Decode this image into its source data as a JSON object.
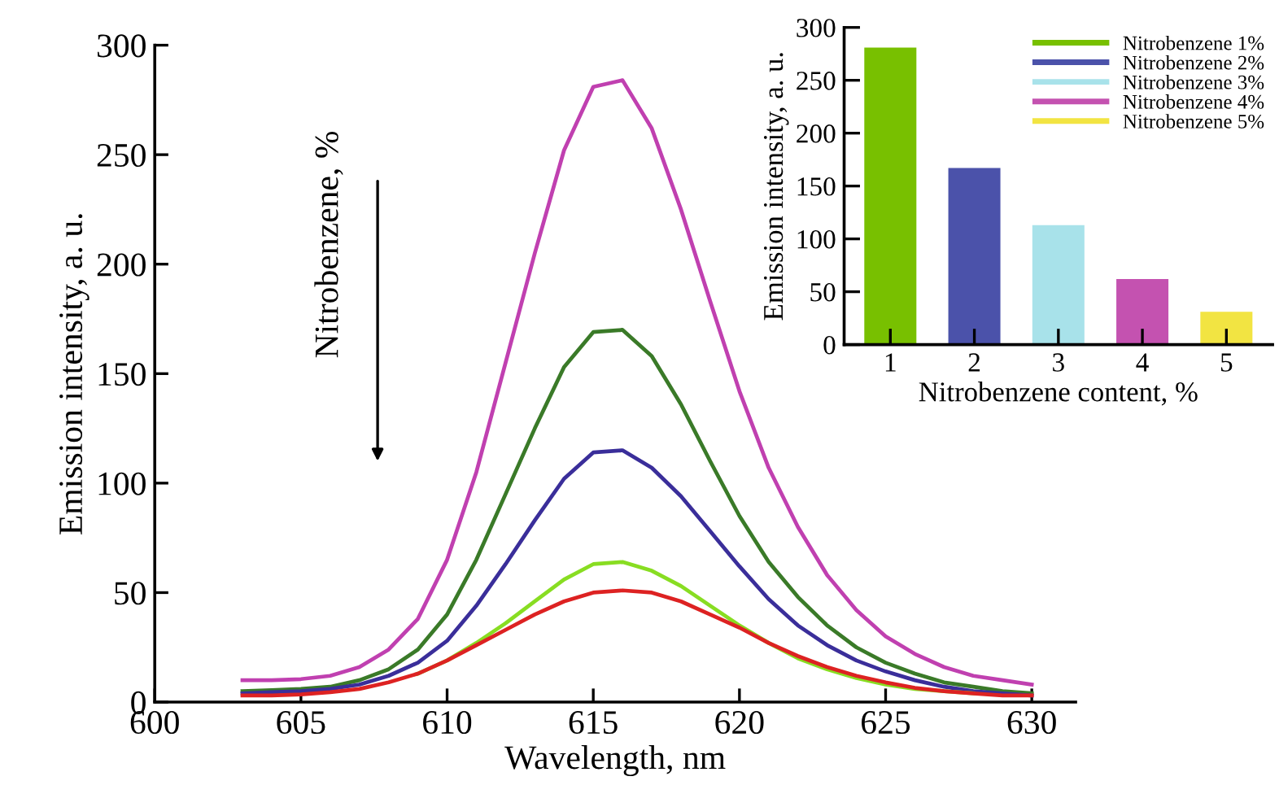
{
  "chart_data": [
    {
      "type": "line",
      "xlabel": "Wavelength, nm",
      "ylabel": "Emission intensity, a. u.",
      "annotations": [
        "Nitrobenzene, %"
      ],
      "x": [
        603,
        604,
        605,
        606,
        607,
        608,
        609,
        610,
        611,
        612,
        613,
        614,
        615,
        616,
        617,
        618,
        619,
        620,
        621,
        622,
        623,
        624,
        625,
        626,
        627,
        628,
        629,
        630
      ],
      "series": [
        {
          "color": "#c040b0",
          "values": [
            10,
            10,
            10.5,
            12,
            16,
            24,
            38,
            65,
            105,
            155,
            205,
            252,
            281,
            284,
            262,
            225,
            183,
            142,
            107,
            80,
            58,
            42,
            30,
            22,
            16,
            12,
            10,
            8
          ]
        },
        {
          "color": "#3a7a28",
          "values": [
            5,
            5.5,
            6,
            7,
            10,
            15,
            24,
            40,
            65,
            95,
            125,
            153,
            169,
            170,
            158,
            136,
            110,
            85,
            64,
            48,
            35,
            25,
            18,
            13,
            9,
            7,
            5,
            4
          ]
        },
        {
          "color": "#3a2e9a",
          "values": [
            4,
            4.5,
            5,
            6,
            8,
            12,
            18,
            28,
            44,
            63,
            83,
            102,
            114,
            115,
            107,
            94,
            78,
            62,
            47,
            35,
            26,
            19,
            14,
            10,
            7,
            5,
            4,
            3
          ]
        },
        {
          "color": "#88dd22",
          "values": [
            null,
            null,
            null,
            null,
            null,
            null,
            13,
            19,
            27,
            36,
            46,
            56,
            63,
            64,
            60,
            53,
            44,
            35,
            27,
            20,
            15,
            11,
            8,
            6,
            5,
            4,
            null,
            null
          ]
        },
        {
          "color": "#dd2222",
          "values": [
            3,
            3,
            3.5,
            4.5,
            6,
            9,
            13,
            19,
            26,
            33,
            40,
            46,
            50,
            51,
            50,
            46,
            40,
            34,
            27,
            21,
            16,
            12,
            9,
            6.5,
            5,
            4,
            3,
            3
          ]
        }
      ],
      "xlim": [
        600,
        631.5
      ],
      "ylim": [
        0,
        300
      ],
      "xticks": [
        600,
        605,
        610,
        615,
        620,
        625,
        630
      ],
      "yticks": [
        0,
        50,
        100,
        150,
        200,
        250,
        300
      ],
      "grid": false,
      "legend": false
    },
    {
      "type": "bar",
      "xlabel": "Nitrobenzene content, %",
      "ylabel": "Emission intensity, a. u.",
      "categories": [
        "1",
        "2",
        "3",
        "4",
        "5"
      ],
      "series": [
        {
          "name": "Nitrobenzene 1%",
          "color": "#78c000",
          "values": [
            281,
            null,
            null,
            null,
            null
          ]
        },
        {
          "name": "Nitrobenzene 2%",
          "color": "#4b52aa",
          "values": [
            null,
            167,
            null,
            null,
            null
          ]
        },
        {
          "name": "Nitrobenzene 3%",
          "color": "#a8e2ea",
          "values": [
            null,
            null,
            113,
            null,
            null
          ]
        },
        {
          "name": "Nitrobenzene 4%",
          "color": "#c452b0",
          "values": [
            null,
            null,
            null,
            62,
            null
          ]
        },
        {
          "name": "Nitrobenzene 5%",
          "color": "#f2e442",
          "values": [
            null,
            null,
            null,
            null,
            31
          ]
        }
      ],
      "ylim": [
        0,
        300
      ],
      "yticks": [
        0,
        50,
        100,
        150,
        200,
        250,
        300
      ],
      "grid": false,
      "legend": "top right"
    }
  ]
}
